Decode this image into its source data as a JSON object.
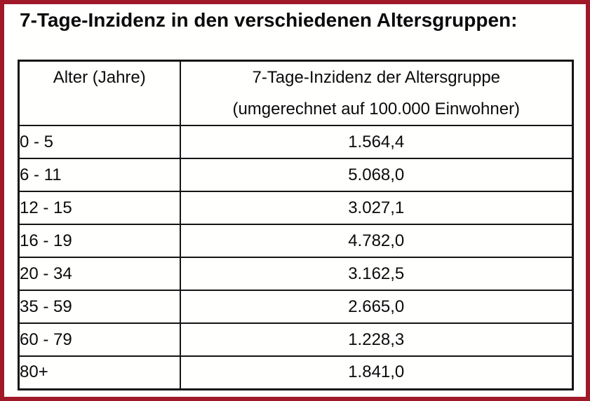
{
  "page": {
    "title": "7-Tage-Inzidenz in den verschiedenen Altersgruppen:",
    "frame_color": "#A01928",
    "table_line_color": "#141414",
    "background_color": "#FFFFFE"
  },
  "table": {
    "header": {
      "col1": "Alter (Jahre)",
      "col2_line1": "7-Tage-Inzidenz der Altersgruppe",
      "col2_line2": "(umgerechnet auf 100.000 Einwohner)"
    },
    "rows": [
      {
        "age": "0 - 5",
        "incidence": "1.564,4"
      },
      {
        "age": "6 - 11",
        "incidence": "5.068,0"
      },
      {
        "age": "12 - 15",
        "incidence": "3.027,1"
      },
      {
        "age": "16 - 19",
        "incidence": "4.782,0"
      },
      {
        "age": "20 - 34",
        "incidence": "3.162,5"
      },
      {
        "age": "35 - 59",
        "incidence": "2.665,0"
      },
      {
        "age": "60 - 79",
        "incidence": "1.228,3"
      },
      {
        "age": "80+",
        "incidence": "1.841,0"
      }
    ]
  }
}
